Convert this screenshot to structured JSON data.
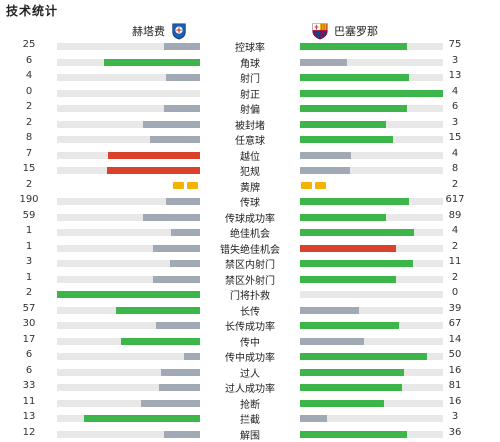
{
  "title": "技术统计",
  "home_team": {
    "name": "赫塔费",
    "logo": "getafe-badge"
  },
  "away_team": {
    "name": "巴塞罗那",
    "logo": "barcelona-badge"
  },
  "colors": {
    "green": "#3cb54a",
    "gray": "#a0a9b4",
    "red": "#d9412a",
    "yellow": "#f2b400",
    "track": "#e8e8e8"
  },
  "stats": [
    {
      "label": "控球率",
      "home": "25",
      "away": "75",
      "home_ratio": 0.25,
      "away_ratio": 0.75,
      "home_color": "gray",
      "away_color": "green"
    },
    {
      "label": "角球",
      "home": "6",
      "away": "3",
      "home_ratio": 0.67,
      "away_ratio": 0.33,
      "home_color": "green",
      "away_color": "gray"
    },
    {
      "label": "射门",
      "home": "4",
      "away": "13",
      "home_ratio": 0.24,
      "away_ratio": 0.76,
      "home_color": "gray",
      "away_color": "green"
    },
    {
      "label": "射正",
      "home": "0",
      "away": "4",
      "home_ratio": 0.0,
      "away_ratio": 1.0,
      "home_color": "gray",
      "away_color": "green"
    },
    {
      "label": "射偏",
      "home": "2",
      "away": "6",
      "home_ratio": 0.25,
      "away_ratio": 0.75,
      "home_color": "gray",
      "away_color": "green"
    },
    {
      "label": "被封堵",
      "home": "2",
      "away": "3",
      "home_ratio": 0.4,
      "away_ratio": 0.6,
      "home_color": "gray",
      "away_color": "green"
    },
    {
      "label": "任意球",
      "home": "8",
      "away": "15",
      "home_ratio": 0.35,
      "away_ratio": 0.65,
      "home_color": "gray",
      "away_color": "green"
    },
    {
      "label": "越位",
      "home": "7",
      "away": "4",
      "home_ratio": 0.64,
      "away_ratio": 0.36,
      "home_color": "red",
      "away_color": "gray"
    },
    {
      "label": "犯规",
      "home": "15",
      "away": "8",
      "home_ratio": 0.65,
      "away_ratio": 0.35,
      "home_color": "red",
      "away_color": "gray"
    },
    {
      "label": "黄牌",
      "home": "2",
      "away": "2",
      "type": "cards",
      "home_cards": 2,
      "away_cards": 2
    },
    {
      "label": "传球",
      "home": "190",
      "away": "617",
      "home_ratio": 0.24,
      "away_ratio": 0.76,
      "home_color": "gray",
      "away_color": "green"
    },
    {
      "label": "传球成功率",
      "home": "59",
      "away": "89",
      "home_ratio": 0.4,
      "away_ratio": 0.6,
      "home_color": "gray",
      "away_color": "green"
    },
    {
      "label": "绝佳机会",
      "home": "1",
      "away": "4",
      "home_ratio": 0.2,
      "away_ratio": 0.8,
      "home_color": "gray",
      "away_color": "green"
    },
    {
      "label": "错失绝佳机会",
      "home": "1",
      "away": "2",
      "home_ratio": 0.33,
      "away_ratio": 0.67,
      "home_color": "gray",
      "away_color": "red"
    },
    {
      "label": "禁区内射门",
      "home": "3",
      "away": "11",
      "home_ratio": 0.21,
      "away_ratio": 0.79,
      "home_color": "gray",
      "away_color": "green"
    },
    {
      "label": "禁区外射门",
      "home": "1",
      "away": "2",
      "home_ratio": 0.33,
      "away_ratio": 0.67,
      "home_color": "gray",
      "away_color": "green"
    },
    {
      "label": "门将扑救",
      "home": "2",
      "away": "0",
      "home_ratio": 1.0,
      "away_ratio": 0.0,
      "home_color": "green",
      "away_color": "gray"
    },
    {
      "label": "长传",
      "home": "57",
      "away": "39",
      "home_ratio": 0.59,
      "away_ratio": 0.41,
      "home_color": "green",
      "away_color": "gray"
    },
    {
      "label": "长传成功率",
      "home": "30",
      "away": "67",
      "home_ratio": 0.31,
      "away_ratio": 0.69,
      "home_color": "gray",
      "away_color": "green"
    },
    {
      "label": "传中",
      "home": "17",
      "away": "14",
      "home_ratio": 0.55,
      "away_ratio": 0.45,
      "home_color": "green",
      "away_color": "gray"
    },
    {
      "label": "传中成功率",
      "home": "6",
      "away": "50",
      "home_ratio": 0.11,
      "away_ratio": 0.89,
      "home_color": "gray",
      "away_color": "green"
    },
    {
      "label": "过人",
      "home": "6",
      "away": "16",
      "home_ratio": 0.27,
      "away_ratio": 0.73,
      "home_color": "gray",
      "away_color": "green"
    },
    {
      "label": "过人成功率",
      "home": "33",
      "away": "81",
      "home_ratio": 0.29,
      "away_ratio": 0.71,
      "home_color": "gray",
      "away_color": "green"
    },
    {
      "label": "抢断",
      "home": "11",
      "away": "16",
      "home_ratio": 0.41,
      "away_ratio": 0.59,
      "home_color": "gray",
      "away_color": "green"
    },
    {
      "label": "拦截",
      "home": "13",
      "away": "3",
      "home_ratio": 0.81,
      "away_ratio": 0.19,
      "home_color": "green",
      "away_color": "gray"
    },
    {
      "label": "解围",
      "home": "12",
      "away": "36",
      "home_ratio": 0.25,
      "away_ratio": 0.75,
      "home_color": "gray",
      "away_color": "green"
    }
  ]
}
